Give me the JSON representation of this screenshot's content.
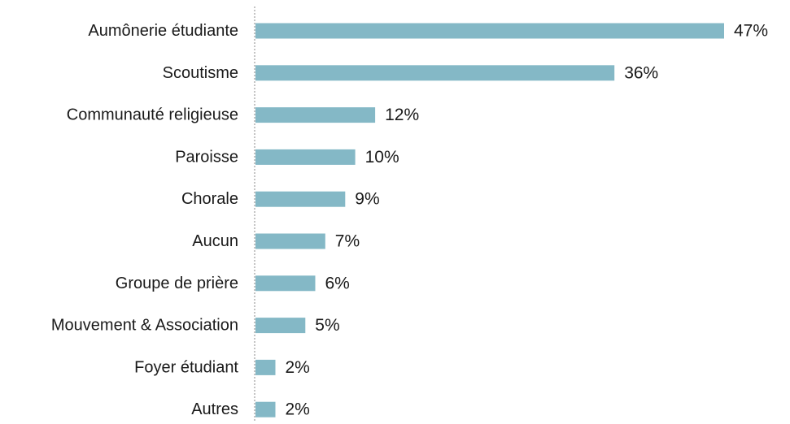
{
  "chart_data": {
    "type": "bar",
    "orientation": "horizontal",
    "categories": [
      "Aumônerie étudiante",
      "Scoutisme",
      "Communauté religieuse",
      "Paroisse",
      "Chorale",
      "Aucun",
      "Groupe de prière",
      "Mouvement & Association",
      "Foyer étudiant",
      "Autres"
    ],
    "values": [
      47,
      36,
      12,
      10,
      9,
      7,
      6,
      5,
      2,
      2
    ],
    "value_labels": [
      "47%",
      "36%",
      "12%",
      "10%",
      "9%",
      "7%",
      "6%",
      "5%",
      "2%",
      "2%"
    ],
    "unit": "%",
    "xlim": [
      0,
      47
    ],
    "bar_color": "#84b8c6",
    "grid": false,
    "legend": "none"
  }
}
